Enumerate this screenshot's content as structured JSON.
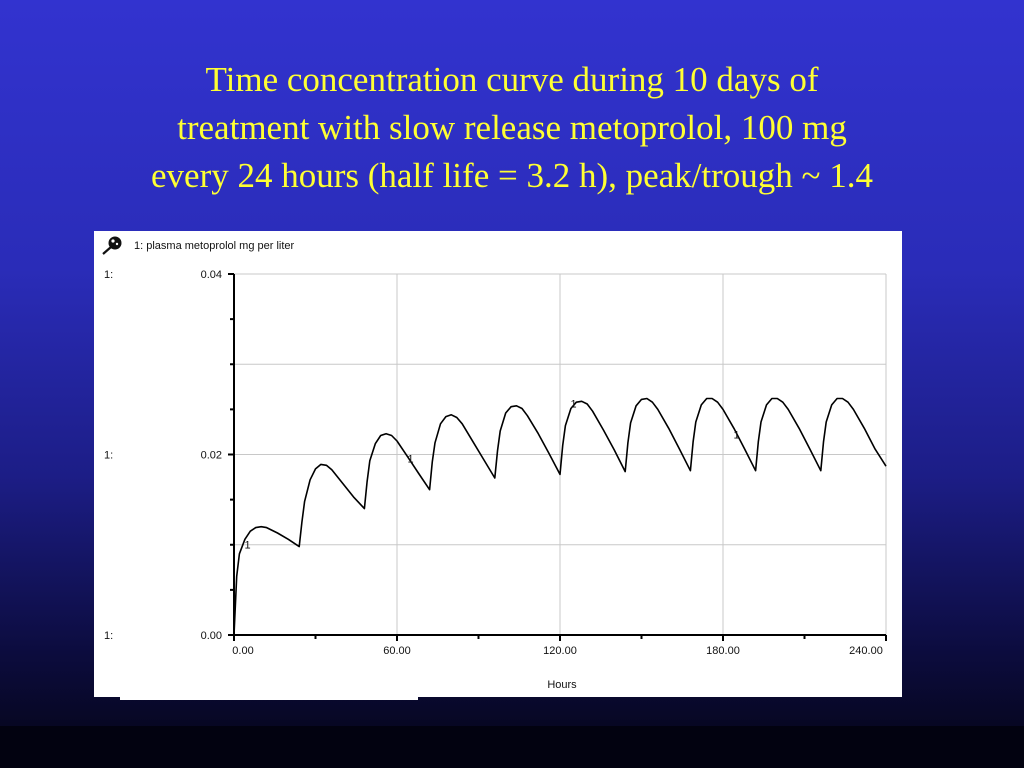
{
  "slide": {
    "title_lines": [
      "Time concentration curve during 10 days of",
      "treatment with slow release metoprolol, 100 mg",
      "every 24 hours (half life = 3.2 h), peak/trough ~ 1.4"
    ]
  },
  "colors": {
    "background_top": "#3233cf",
    "background_bottom": "#040414",
    "title": "#ffff33",
    "panel": "#ffffff",
    "curve": "#000000",
    "grid": "#c8c8c8"
  },
  "chart_data": {
    "type": "line",
    "legend": "1: plasma metoprolol mg per liter",
    "series_marker": "1",
    "icon": "pin-icon",
    "xlabel": "Hours",
    "ylabel": "",
    "xlim": [
      0,
      240
    ],
    "ylim": [
      0,
      0.04
    ],
    "x_ticks": [
      "0.00",
      "60.00",
      "120.00",
      "180.00",
      "240.00"
    ],
    "y_ticks": [
      "0.00",
      "0.02",
      "0.04"
    ],
    "y_tick_prefix": "1:",
    "grid": true,
    "dose_interval_hours": 24,
    "series": [
      {
        "label": "1",
        "points": [
          [
            0,
            0
          ],
          [
            1,
            0.0065
          ],
          [
            2,
            0.009
          ],
          [
            4,
            0.0106
          ],
          [
            6,
            0.0115
          ],
          [
            8,
            0.0119
          ],
          [
            10,
            0.012
          ],
          [
            12,
            0.0119
          ],
          [
            16,
            0.0113
          ],
          [
            20,
            0.0106
          ],
          [
            24,
            0.0098
          ],
          [
            25,
            0.0125
          ],
          [
            26,
            0.0148
          ],
          [
            28,
            0.0172
          ],
          [
            30,
            0.0184
          ],
          [
            32,
            0.0189
          ],
          [
            34,
            0.0188
          ],
          [
            36,
            0.0183
          ],
          [
            40,
            0.0168
          ],
          [
            44,
            0.0153
          ],
          [
            48,
            0.014
          ],
          [
            49,
            0.017
          ],
          [
            50,
            0.0193
          ],
          [
            52,
            0.0212
          ],
          [
            54,
            0.0221
          ],
          [
            56,
            0.0223
          ],
          [
            58,
            0.0221
          ],
          [
            60,
            0.0215
          ],
          [
            64,
            0.0197
          ],
          [
            68,
            0.0179
          ],
          [
            72,
            0.0161
          ],
          [
            73,
            0.0192
          ],
          [
            74,
            0.0213
          ],
          [
            76,
            0.0234
          ],
          [
            78,
            0.0242
          ],
          [
            80,
            0.0244
          ],
          [
            82,
            0.0241
          ],
          [
            84,
            0.0234
          ],
          [
            88,
            0.0214
          ],
          [
            92,
            0.0194
          ],
          [
            96,
            0.0174
          ],
          [
            97,
            0.0204
          ],
          [
            98,
            0.0226
          ],
          [
            100,
            0.0246
          ],
          [
            102,
            0.0253
          ],
          [
            104,
            0.0254
          ],
          [
            106,
            0.0251
          ],
          [
            108,
            0.0243
          ],
          [
            112,
            0.0223
          ],
          [
            116,
            0.0201
          ],
          [
            120,
            0.0178
          ],
          [
            121,
            0.021
          ],
          [
            122,
            0.0232
          ],
          [
            124,
            0.0251
          ],
          [
            126,
            0.0258
          ],
          [
            128,
            0.0259
          ],
          [
            130,
            0.0256
          ],
          [
            132,
            0.0248
          ],
          [
            136,
            0.0227
          ],
          [
            140,
            0.0205
          ],
          [
            144,
            0.0181
          ],
          [
            145,
            0.0213
          ],
          [
            146,
            0.0235
          ],
          [
            148,
            0.0254
          ],
          [
            150,
            0.0261
          ],
          [
            152,
            0.0262
          ],
          [
            154,
            0.0258
          ],
          [
            156,
            0.025
          ],
          [
            160,
            0.0229
          ],
          [
            164,
            0.0206
          ],
          [
            168,
            0.0182
          ],
          [
            169,
            0.0214
          ],
          [
            170,
            0.0236
          ],
          [
            172,
            0.0255
          ],
          [
            174,
            0.0262
          ],
          [
            176,
            0.0262
          ],
          [
            178,
            0.0258
          ],
          [
            180,
            0.025
          ],
          [
            184,
            0.0229
          ],
          [
            188,
            0.0206
          ],
          [
            192,
            0.0182
          ],
          [
            193,
            0.0214
          ],
          [
            194,
            0.0236
          ],
          [
            196,
            0.0255
          ],
          [
            198,
            0.0262
          ],
          [
            200,
            0.0262
          ],
          [
            202,
            0.0258
          ],
          [
            204,
            0.025
          ],
          [
            208,
            0.0229
          ],
          [
            212,
            0.0206
          ],
          [
            216,
            0.0182
          ],
          [
            217,
            0.0214
          ],
          [
            218,
            0.0236
          ],
          [
            220,
            0.0255
          ],
          [
            222,
            0.0262
          ],
          [
            224,
            0.0262
          ],
          [
            226,
            0.0258
          ],
          [
            228,
            0.025
          ],
          [
            232,
            0.0229
          ],
          [
            236,
            0.0206
          ],
          [
            240,
            0.0187
          ]
        ],
        "label_points": [
          [
            5,
            0.0096
          ],
          [
            65,
            0.0191
          ],
          [
            125,
            0.0252
          ],
          [
            185,
            0.0218
          ]
        ]
      }
    ]
  }
}
